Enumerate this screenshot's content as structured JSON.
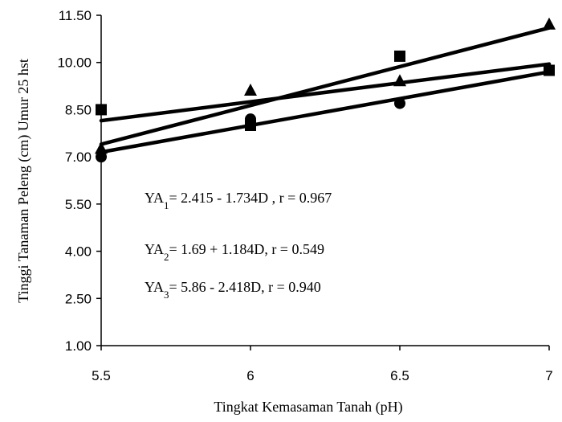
{
  "chart_data": {
    "type": "scatter",
    "title": "",
    "xlabel": "Tingkat Kemasaman Tanah (pH)",
    "ylabel": "Tinggi Tanaman Peleng (cm) Umur 25 hst",
    "x_ticks": [
      "5.5",
      "6",
      "6.5",
      "7"
    ],
    "y_ticks": [
      "1.00",
      "2.50",
      "4.00",
      "5.50",
      "7.00",
      "8.50",
      "10.00",
      "11.50"
    ],
    "xlim": [
      5.5,
      7
    ],
    "ylim": [
      1.0,
      11.5
    ],
    "grid": false,
    "legend": "none",
    "series": [
      {
        "marker": "square",
        "points": [
          [
            5.5,
            8.5
          ],
          [
            6,
            8.0
          ],
          [
            6.5,
            10.2
          ],
          [
            7,
            9.75
          ]
        ],
        "trend": [
          [
            5.5,
            8.15
          ],
          [
            7,
            9.95
          ]
        ]
      },
      {
        "marker": "triangle",
        "points": [
          [
            5.5,
            7.25
          ],
          [
            6,
            9.1
          ],
          [
            6.5,
            9.4
          ],
          [
            7,
            11.2
          ]
        ],
        "trend": [
          [
            5.5,
            7.4
          ],
          [
            7,
            11.1
          ]
        ]
      },
      {
        "marker": "circle",
        "points": [
          [
            5.5,
            7.0
          ],
          [
            6,
            8.2
          ],
          [
            6.5,
            8.7
          ],
          [
            7,
            9.75
          ]
        ],
        "trend": [
          [
            5.5,
            7.15
          ],
          [
            7,
            9.7
          ]
        ]
      }
    ],
    "annotations": [
      {
        "pre": "YA",
        "sub": "1",
        "post": "= 2.415 - 1.734D , r = 0.967"
      },
      {
        "pre": "YA",
        "sub": "2",
        "post": "= 1.69 + 1.184D, r = 0.549"
      },
      {
        "pre": "YA",
        "sub": "3",
        "post": "= 5.86 - 2.418D, r = 0.940"
      }
    ],
    "colors": {
      "line": "#000000",
      "marker": "#000000"
    }
  }
}
